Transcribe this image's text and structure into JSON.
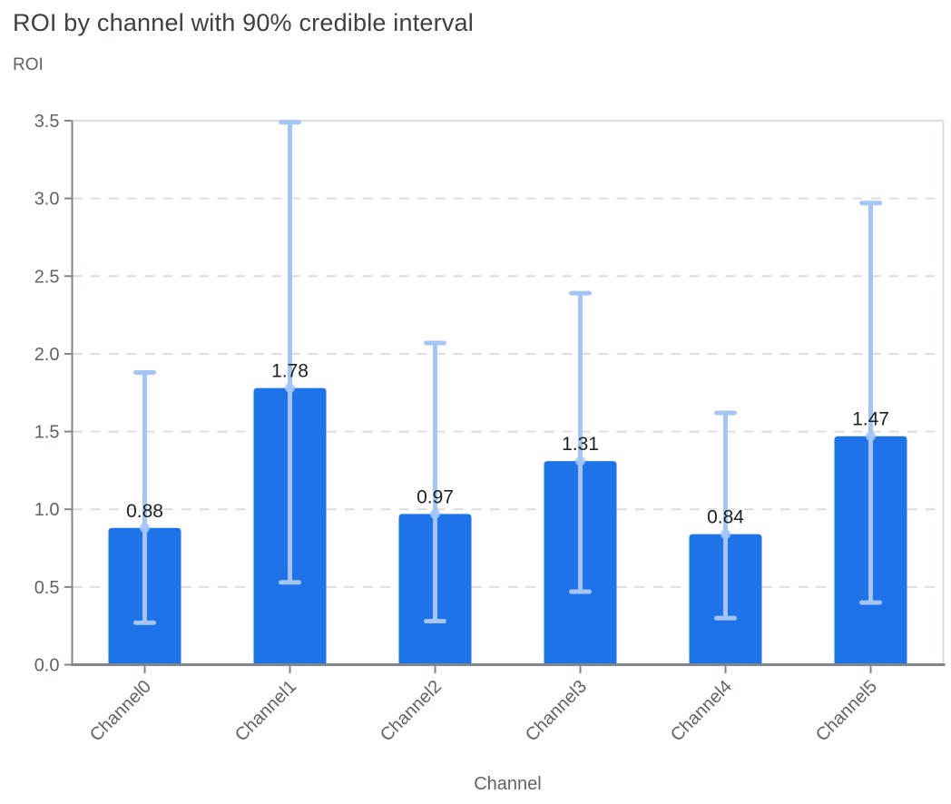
{
  "chart_data": {
    "type": "bar",
    "title": "ROI by channel with 90% credible interval",
    "ylabel": "ROI",
    "xlabel": "Channel",
    "categories": [
      "Channel0",
      "Channel1",
      "Channel2",
      "Channel3",
      "Channel4",
      "Channel5"
    ],
    "series": [
      {
        "name": "ROI",
        "values": [
          0.88,
          1.78,
          0.97,
          1.31,
          0.84,
          1.47
        ],
        "data_labels": [
          "0.88",
          "1.78",
          "0.97",
          "1.31",
          "0.84",
          "1.47"
        ],
        "error_low": [
          0.27,
          0.53,
          0.28,
          0.47,
          0.3,
          0.4
        ],
        "error_high": [
          1.88,
          3.49,
          2.07,
          2.39,
          1.62,
          2.97
        ],
        "error_kind": "90% credible interval"
      }
    ],
    "ylim": [
      0,
      3.5
    ],
    "ytick_labels": [
      "0.0",
      "0.5",
      "1.0",
      "1.5",
      "2.0",
      "2.5",
      "3.0",
      "3.5"
    ],
    "grid": "horizontal-dashed",
    "legend": "none",
    "xtick_rotation_deg": -45,
    "colors": {
      "bar": "#1e73e8",
      "error_bar": "#a6c5f7",
      "data_label": "#202124",
      "axis": "#80868b",
      "grid": "#dadce0",
      "plot_border": "#dadce0",
      "tick_text": "#5f6368",
      "title_text": "#3c4043"
    }
  }
}
